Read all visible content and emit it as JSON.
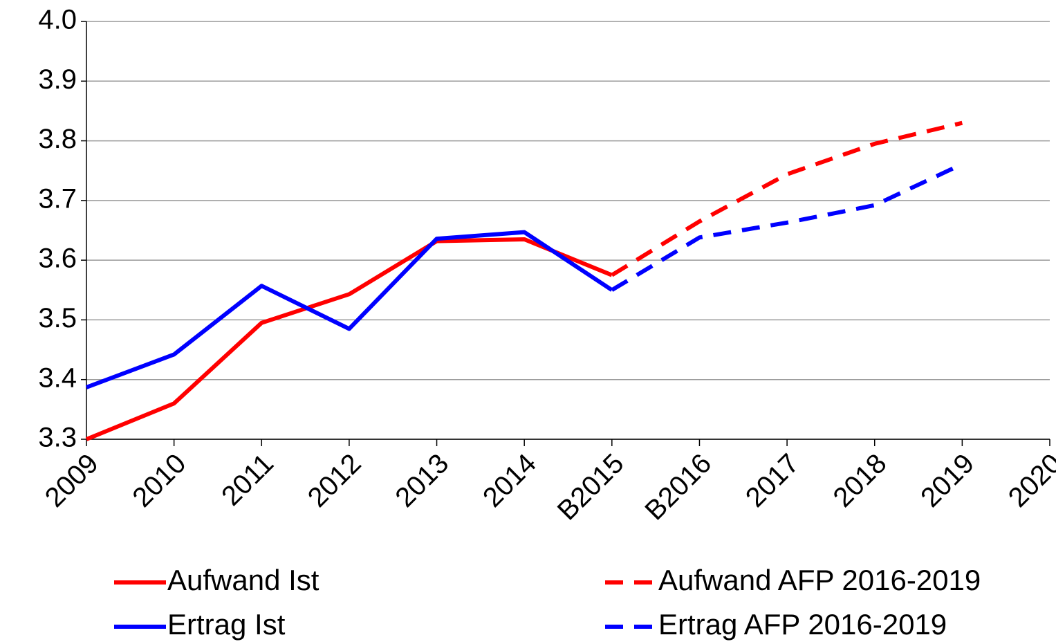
{
  "chart_data": {
    "type": "line",
    "categories": [
      "2009",
      "2010",
      "2011",
      "2012",
      "2013",
      "2014",
      "B2015",
      "B2016",
      "2017",
      "2018",
      "2019",
      "2020"
    ],
    "series": [
      {
        "name": "Aufwand Ist",
        "color": "#ff0000",
        "style": "solid",
        "values": [
          3.3,
          3.36,
          3.495,
          3.543,
          3.632,
          3.635,
          3.575,
          null,
          null,
          null,
          null,
          null
        ]
      },
      {
        "name": "Ertrag Ist",
        "color": "#0000ff",
        "style": "solid",
        "values": [
          3.387,
          3.442,
          3.557,
          3.485,
          3.636,
          3.647,
          3.55,
          null,
          null,
          null,
          null,
          null
        ]
      },
      {
        "name": "Aufwand AFP 2016-2019",
        "color": "#ff0000",
        "style": "dashed",
        "values": [
          null,
          null,
          null,
          null,
          null,
          null,
          3.575,
          3.665,
          3.744,
          3.795,
          3.83,
          null
        ]
      },
      {
        "name": "Ertrag AFP 2016-2019",
        "color": "#0000ff",
        "style": "dashed",
        "values": [
          null,
          null,
          null,
          null,
          null,
          null,
          3.55,
          3.638,
          3.663,
          3.692,
          3.761,
          null
        ]
      }
    ],
    "ylim": [
      3.3,
      4.0
    ],
    "yticks": [
      3.3,
      3.4,
      3.5,
      3.6,
      3.7,
      3.8,
      3.9,
      {
        "value": 4.0,
        "label": "4.0"
      }
    ],
    "grid": true
  }
}
